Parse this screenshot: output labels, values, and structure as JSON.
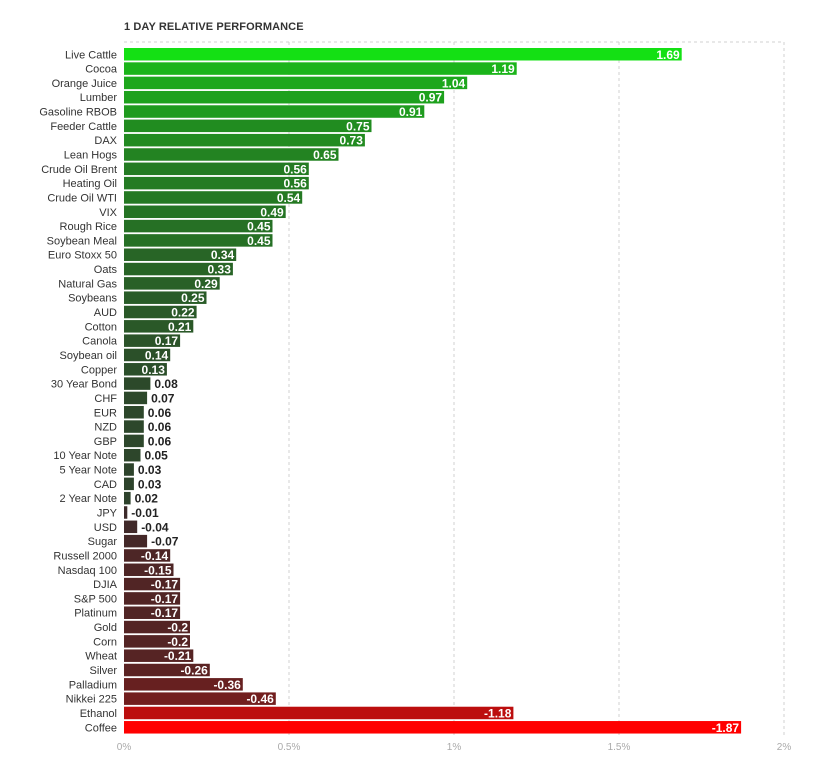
{
  "chart_data": {
    "type": "bar",
    "orientation": "horizontal",
    "title": "1 DAY RELATIVE PERFORMANCE",
    "xlabel": "",
    "ylabel": "",
    "xlim": [
      0,
      2
    ],
    "x_ticks": [
      "0%",
      "0.5%",
      "1%",
      "1.5%",
      "2%"
    ],
    "grid": "vertical dashed",
    "bar_length_uses_absolute_value": true,
    "colors": {
      "top_positive": "#14e014",
      "low_positive": "#2e3f2c",
      "low_negative": "#3a2a2a",
      "top_negative": "#ff0000"
    },
    "categories": [
      "Live Cattle",
      "Cocoa",
      "Orange Juice",
      "Lumber",
      "Gasoline RBOB",
      "Feeder Cattle",
      "DAX",
      "Lean Hogs",
      "Crude Oil Brent",
      "Heating Oil",
      "Crude Oil WTI",
      "VIX",
      "Rough Rice",
      "Soybean Meal",
      "Euro Stoxx 50",
      "Oats",
      "Natural Gas",
      "Soybeans",
      "AUD",
      "Cotton",
      "Canola",
      "Soybean oil",
      "Copper",
      "30 Year Bond",
      "CHF",
      "EUR",
      "NZD",
      "GBP",
      "10 Year Note",
      "5 Year Note",
      "CAD",
      "2 Year Note",
      "JPY",
      "USD",
      "Sugar",
      "Russell 2000",
      "Nasdaq 100",
      "DJIA",
      "S&P 500",
      "Platinum",
      "Gold",
      "Corn",
      "Wheat",
      "Silver",
      "Palladium",
      "Nikkei 225",
      "Ethanol",
      "Coffee"
    ],
    "values": [
      1.69,
      1.19,
      1.04,
      0.97,
      0.91,
      0.75,
      0.73,
      0.65,
      0.56,
      0.56,
      0.54,
      0.49,
      0.45,
      0.45,
      0.34,
      0.33,
      0.29,
      0.25,
      0.22,
      0.21,
      0.17,
      0.14,
      0.13,
      0.08,
      0.07,
      0.06,
      0.06,
      0.06,
      0.05,
      0.03,
      0.03,
      0.02,
      -0.01,
      -0.04,
      -0.07,
      -0.14,
      -0.15,
      -0.17,
      -0.17,
      -0.17,
      -0.2,
      -0.2,
      -0.21,
      -0.26,
      -0.36,
      -0.46,
      -1.18,
      -1.87
    ],
    "value_labels": [
      "1.69",
      "1.19",
      "1.04",
      "0.97",
      "0.91",
      "0.75",
      "0.73",
      "0.65",
      "0.56",
      "0.56",
      "0.54",
      "0.49",
      "0.45",
      "0.45",
      "0.34",
      "0.33",
      "0.29",
      "0.25",
      "0.22",
      "0.21",
      "0.17",
      "0.14",
      "0.13",
      "0.08",
      "0.07",
      "0.06",
      "0.06",
      "0.06",
      "0.05",
      "0.03",
      "0.03",
      "0.02",
      "-0.01",
      "-0.04",
      "-0.07",
      "-0.14",
      "-0.15",
      "-0.17",
      "-0.17",
      "-0.17",
      "-0.2",
      "-0.2",
      "-0.21",
      "-0.26",
      "-0.36",
      "-0.46",
      "-1.18",
      "-1.87"
    ]
  }
}
